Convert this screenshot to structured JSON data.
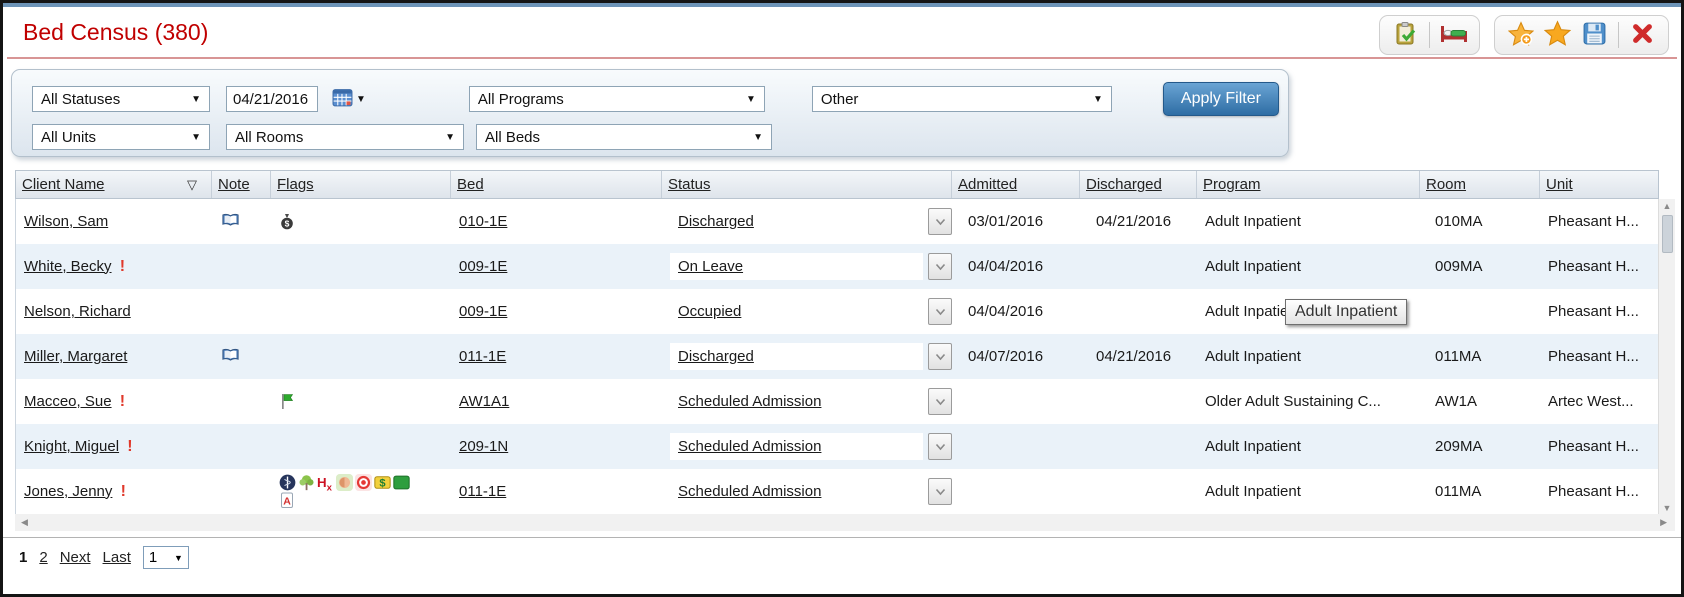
{
  "colors": {
    "title_red": "#c00000",
    "accent_blue": "#2e6da4",
    "alert_red": "#e0392b",
    "row_alt_blue": "#eaf2f9"
  },
  "header": {
    "title": "Bed Census (380)",
    "toolbar": {
      "group1": [
        "clipboard-check-icon",
        "bed-management-icon"
      ],
      "group2": [
        "add-favorite-star-icon",
        "favorite-star-icon",
        "save-icon",
        "close-icon"
      ]
    }
  },
  "filters": {
    "statuses": "All Statuses",
    "census_date": "04/21/2016",
    "programs": "All Programs",
    "other": "Other",
    "units": "All Units",
    "rooms": "All Rooms",
    "beds": "All Beds",
    "apply_label": "Apply Filter"
  },
  "table": {
    "columns": {
      "client": "Client Name",
      "note": "Note",
      "flags": "Flags",
      "bed": "Bed",
      "status": "Status",
      "admitted": "Admitted",
      "discharged": "Discharged",
      "program": "Program",
      "room": "Room",
      "unit": "Unit"
    },
    "sort_indicator": "▽",
    "rows": [
      {
        "client": "Wilson, Sam",
        "alert": false,
        "note": "book",
        "flags": [
          "money-bag"
        ],
        "flags2": [],
        "bed": "010-1E",
        "status": "Discharged",
        "admitted": "03/01/2016",
        "discharged": "04/21/2016",
        "program": "Adult Inpatient",
        "room": "010MA",
        "unit": "Pheasant H..."
      },
      {
        "client": "White, Becky",
        "alert": true,
        "note": "",
        "flags": [],
        "flags2": [],
        "bed": "009-1E",
        "status": "On Leave",
        "admitted": "04/04/2016",
        "discharged": "",
        "program": "Adult Inpatient",
        "room": "009MA",
        "unit": "Pheasant H..."
      },
      {
        "client": "Nelson, Richard",
        "alert": false,
        "note": "",
        "flags": [],
        "flags2": [],
        "bed": "009-1E",
        "status": "Occupied",
        "admitted": "04/04/2016",
        "discharged": "",
        "program": "Adult Inpatient",
        "room": "",
        "unit": "Pheasant H..."
      },
      {
        "client": "Miller, Margaret",
        "alert": false,
        "note": "book",
        "flags": [],
        "flags2": [],
        "bed": "011-1E",
        "status": "Discharged",
        "admitted": "04/07/2016",
        "discharged": "04/21/2016",
        "program": "Adult Inpatient",
        "room": "011MA",
        "unit": "Pheasant H..."
      },
      {
        "client": "Macceo, Sue",
        "alert": true,
        "note": "",
        "flags": [
          "green-flag"
        ],
        "flags2": [],
        "bed": "AW1A1",
        "status": "Scheduled Admission",
        "admitted": "",
        "discharged": "",
        "program": "Older Adult Sustaining C...",
        "room": "AW1A",
        "unit": "Artec West..."
      },
      {
        "client": "Knight, Miguel",
        "alert": true,
        "note": "",
        "flags": [],
        "flags2": [],
        "bed": "209-1N",
        "status": "Scheduled Admission",
        "admitted": "",
        "discharged": "",
        "program": "Adult Inpatient",
        "room": "209MA",
        "unit": "Pheasant H..."
      },
      {
        "client": "Jones, Jenny",
        "alert": true,
        "note": "",
        "flags": [
          "medical-circle",
          "tree",
          "hx",
          "person",
          "target",
          "finance",
          "green-card"
        ],
        "flags2": [
          "assessment-doc"
        ],
        "bed": "011-1E",
        "status": "Scheduled Admission",
        "admitted": "",
        "discharged": "",
        "program": "Adult Inpatient",
        "room": "011MA",
        "unit": "Pheasant H..."
      }
    ]
  },
  "tooltip": {
    "text": "Adult Inpatient"
  },
  "pager": {
    "current": "1",
    "page2": "2",
    "next_label": "Next",
    "last_label": "Last",
    "page_select": "1"
  }
}
